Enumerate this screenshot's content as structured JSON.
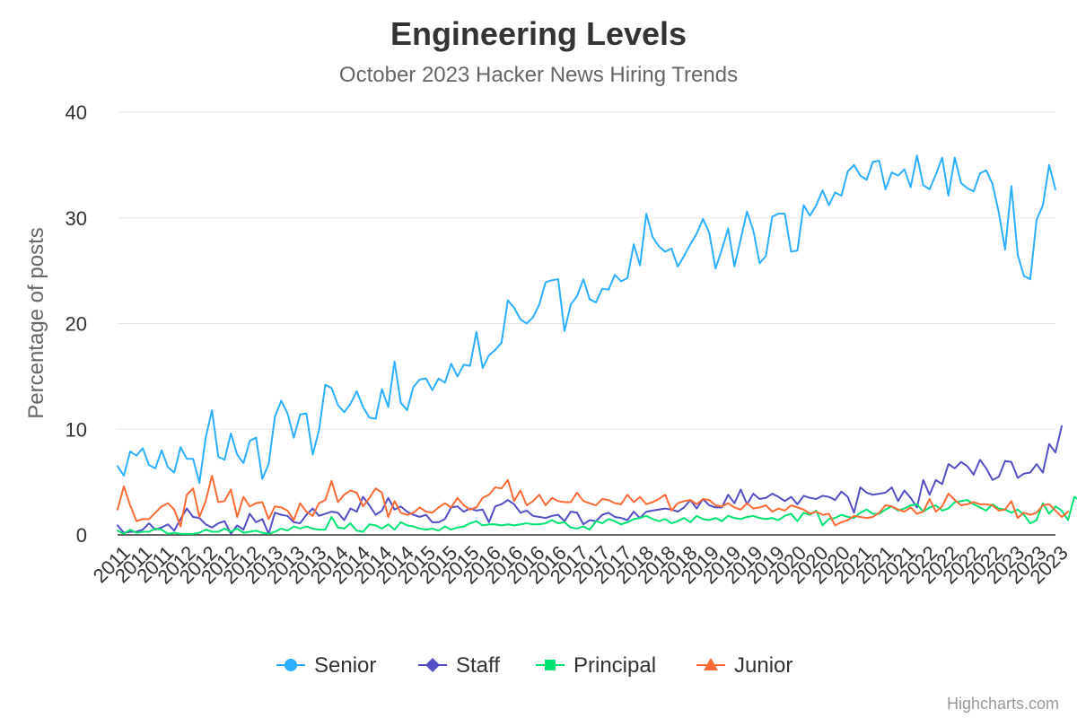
{
  "chart_data": {
    "type": "line",
    "title": "Engineering Levels",
    "subtitle": "October 2023 Hacker News Hiring Trends",
    "ylabel": "Percentage of posts",
    "xlabel": "",
    "ylim": [
      0,
      40
    ],
    "yticks": [
      0,
      10,
      20,
      30,
      40
    ],
    "grid": true,
    "legend": "bottom-center",
    "credits": "Highcharts.com",
    "x_tick_labels": [
      "2011",
      "2011",
      "2011",
      "2012",
      "2012",
      "2012",
      "2012",
      "2013",
      "2013",
      "2013",
      "2014",
      "2014",
      "2014",
      "2014",
      "2015",
      "2015",
      "2015",
      "2016",
      "2016",
      "2016",
      "2016",
      "2017",
      "2017",
      "2017",
      "2018",
      "2018",
      "2018",
      "2019",
      "2019",
      "2019",
      "2019",
      "2020",
      "2020",
      "2020",
      "2021",
      "2021",
      "2021",
      "2022",
      "2022",
      "2022",
      "2022",
      "2023",
      "2023",
      "2023"
    ],
    "series": [
      {
        "name": "Senior",
        "color": "#2caffe",
        "marker": "circle",
        "values": [
          6.5,
          5.6,
          7.9,
          7.5,
          8.2,
          6.6,
          6.3,
          8.0,
          6.4,
          5.9,
          8.3,
          7.2,
          7.2,
          4.9,
          9.2,
          11.8,
          7.4,
          7.1,
          9.6,
          7.6,
          6.8,
          8.9,
          9.2,
          5.3,
          6.7,
          11.2,
          12.7,
          11.5,
          9.2,
          11.4,
          11.5,
          7.6,
          9.9,
          14.2,
          13.9,
          12.3,
          11.6,
          12.4,
          13.6,
          12.1,
          11.1,
          11.0,
          13.8,
          12.1,
          16.4,
          12.5,
          11.8,
          14.0,
          14.7,
          14.8,
          13.7,
          14.8,
          14.4,
          16.2,
          15.0,
          16.1,
          16.0,
          19.2,
          15.8,
          17.0,
          17.5,
          18.2,
          22.2,
          21.5,
          20.4,
          20.0,
          20.6,
          21.8,
          23.9,
          24.1,
          24.2,
          19.3,
          21.8,
          22.6,
          24.2,
          22.3,
          22.0,
          23.3,
          23.2,
          24.6,
          24.0,
          24.3,
          27.5,
          25.5,
          30.4,
          28.2,
          27.3,
          26.8,
          27.1,
          25.4,
          26.4,
          27.5,
          28.5,
          29.9,
          28.6,
          25.2,
          27.0,
          29.0,
          25.4,
          28.0,
          30.6,
          28.8,
          25.7,
          26.4,
          30.1,
          30.4,
          30.4,
          26.8,
          26.9,
          31.2,
          30.2,
          31.2,
          32.6,
          31.2,
          32.4,
          32.1,
          34.4,
          35.0,
          34.0,
          33.6,
          35.3,
          35.4,
          32.7,
          34.3,
          34.0,
          34.6,
          32.9,
          35.9,
          33.1,
          32.7,
          34.1,
          35.7,
          32.1,
          35.7,
          33.3,
          32.8,
          32.5,
          34.2,
          34.5,
          33.2,
          30.5,
          27.0,
          33.0,
          26.5,
          24.5,
          24.2,
          29.8,
          31.2,
          35.0,
          32.7
        ]
      },
      {
        "name": "Staff",
        "color": "#544fc5",
        "marker": "diamond",
        "values": [
          0.9,
          0.2,
          0.3,
          0.3,
          0.5,
          1.1,
          0.5,
          0.7,
          1.0,
          0.4,
          1.5,
          2.5,
          1.7,
          1.6,
          1.0,
          0.7,
          1.1,
          1.3,
          0.1,
          0.9,
          0.5,
          2.0,
          1.2,
          1.5,
          0.1,
          2.1,
          1.9,
          1.8,
          1.2,
          1.1,
          1.9,
          2.5,
          1.8,
          2.0,
          2.2,
          2.1,
          1.4,
          2.5,
          2.2,
          3.6,
          2.8,
          1.9,
          2.3,
          3.5,
          2.4,
          2.7,
          2.2,
          1.9,
          1.7,
          1.9,
          1.2,
          1.2,
          1.5,
          2.6,
          2.7,
          2.2,
          2.5,
          2.3,
          2.4,
          1.2,
          2.7,
          2.9,
          3.3,
          2.9,
          2.1,
          2.3,
          1.8,
          1.7,
          1.6,
          1.8,
          1.9,
          1.3,
          2.2,
          2.1,
          1.0,
          1.4,
          1.3,
          1.9,
          2.1,
          1.7,
          1.6,
          1.4,
          2.2,
          1.6,
          2.2,
          2.3,
          2.4,
          2.5,
          2.4,
          2.2,
          2.6,
          3.3,
          2.5,
          3.4,
          2.8,
          2.6,
          2.6,
          3.8,
          3.0,
          4.3,
          2.9,
          3.9,
          3.4,
          3.5,
          3.9,
          3.6,
          3.2,
          3.6,
          2.9,
          3.7,
          3.5,
          3.4,
          3.7,
          3.6,
          3.3,
          4.1,
          3.6,
          2.1,
          4.5,
          4.0,
          3.8,
          3.9,
          4.0,
          4.5,
          3.2,
          4.2,
          3.5,
          2.6,
          5.2,
          3.8,
          5.2,
          4.8,
          6.7,
          6.3,
          6.9,
          6.5,
          5.7,
          7.1,
          6.3,
          5.2,
          5.5,
          7.0,
          6.9,
          5.4,
          5.8,
          5.9,
          6.7,
          5.9,
          8.6,
          7.8,
          10.3
        ]
      },
      {
        "name": "Principal",
        "color": "#00e272",
        "marker": "square",
        "values": [
          0.4,
          0.1,
          0.5,
          0.2,
          0.3,
          0.3,
          0.6,
          0.5,
          0.1,
          0.2,
          0.1,
          0.1,
          0.1,
          0.2,
          0.5,
          0.3,
          0.3,
          0.6,
          0.3,
          0.6,
          0.2,
          0.3,
          0.4,
          0.2,
          0.1,
          0.3,
          0.6,
          0.4,
          0.8,
          0.6,
          0.8,
          0.6,
          0.5,
          0.5,
          1.7,
          0.7,
          0.6,
          1.1,
          0.4,
          0.3,
          1.0,
          0.9,
          0.6,
          1.0,
          0.5,
          1.2,
          0.9,
          0.8,
          0.6,
          0.5,
          0.6,
          0.4,
          0.8,
          0.5,
          0.7,
          0.8,
          1.1,
          1.3,
          0.9,
          1.0,
          1.0,
          0.9,
          1.0,
          0.9,
          1.0,
          1.1,
          1.0,
          1.0,
          1.1,
          1.4,
          1.1,
          1.2,
          0.7,
          0.6,
          0.8,
          0.5,
          1.3,
          1.1,
          1.5,
          1.3,
          1.0,
          1.2,
          1.5,
          1.6,
          1.8,
          1.5,
          1.3,
          1.5,
          1.1,
          1.3,
          1.6,
          1.2,
          1.8,
          1.5,
          1.4,
          1.6,
          1.3,
          1.8,
          1.6,
          1.5,
          1.7,
          1.8,
          1.6,
          1.5,
          1.6,
          1.4,
          1.8,
          2.0,
          1.3,
          2.1,
          1.9,
          2.3,
          0.9,
          1.5,
          1.6,
          1.9,
          1.7,
          1.6,
          2.1,
          2.4,
          2.0,
          2.0,
          2.4,
          2.7,
          2.3,
          2.5,
          2.8,
          2.9,
          2.2,
          2.6,
          2.8,
          2.3,
          2.5,
          3.1,
          3.2,
          3.3,
          2.9,
          2.6,
          2.3,
          2.9,
          2.5,
          2.4,
          2.1,
          2.4,
          1.9,
          1.1,
          1.4,
          3.0,
          2.0,
          2.7,
          2.3,
          1.4,
          3.6,
          3.2
        ]
      },
      {
        "name": "Junior",
        "color": "#fe6a35",
        "marker": "triangle",
        "values": [
          2.4,
          4.6,
          2.8,
          1.3,
          1.5,
          1.5,
          2.1,
          2.7,
          3.0,
          2.4,
          0.8,
          3.8,
          4.4,
          1.7,
          3.2,
          5.6,
          3.1,
          3.2,
          4.3,
          1.7,
          3.6,
          2.7,
          3.0,
          3.1,
          1.5,
          2.7,
          2.6,
          2.3,
          1.4,
          3.0,
          2.2,
          1.8,
          3.0,
          3.3,
          5.1,
          3.1,
          3.8,
          4.2,
          4.0,
          2.7,
          3.5,
          4.4,
          4.0,
          1.7,
          3.2,
          2.1,
          1.9,
          2.1,
          2.6,
          2.2,
          2.1,
          2.6,
          3.0,
          2.6,
          3.5,
          2.8,
          2.4,
          2.6,
          3.5,
          3.8,
          4.5,
          4.4,
          5.2,
          3.2,
          4.2,
          2.8,
          3.2,
          3.8,
          2.8,
          3.5,
          3.2,
          3.1,
          3.1,
          4.0,
          3.2,
          3.0,
          2.8,
          3.4,
          3.3,
          3.0,
          2.9,
          3.8,
          3.1,
          3.6,
          2.9,
          3.1,
          3.4,
          3.8,
          2.3,
          3.0,
          3.2,
          3.3,
          2.9,
          3.4,
          3.3,
          2.8,
          2.7,
          3.0,
          2.6,
          2.4,
          3.0,
          2.5,
          2.6,
          2.8,
          2.2,
          2.5,
          2.3,
          2.8,
          2.6,
          2.4,
          2.0,
          2.2,
          1.9,
          2.0,
          0.9,
          1.2,
          1.4,
          1.8,
          1.7,
          1.6,
          1.7,
          2.1,
          2.8,
          2.7,
          2.4,
          2.2,
          2.6,
          2.0,
          2.2,
          3.4,
          2.2,
          2.7,
          3.9,
          3.3,
          2.8,
          2.9,
          3.1,
          2.9,
          2.9,
          2.8,
          2.3,
          2.4,
          3.2,
          1.6,
          2.1,
          1.9,
          2.1,
          2.8,
          2.9,
          2.3,
          1.7,
          2.2
        ]
      }
    ]
  }
}
